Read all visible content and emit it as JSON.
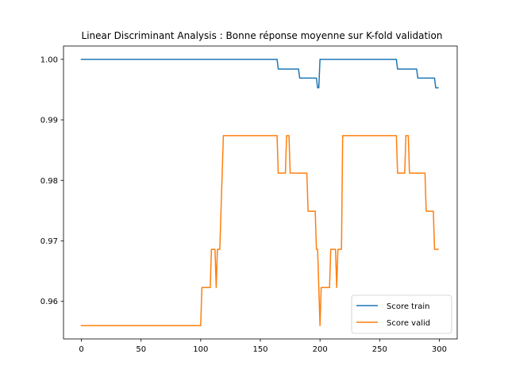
{
  "chart_data": {
    "type": "line",
    "title": "Linear Discriminant Analysis : Bonne réponse moyenne sur K-fold validation",
    "xlabel": "",
    "ylabel": "",
    "xlim": [
      -15,
      315
    ],
    "ylim": [
      0.9538,
      1.0022
    ],
    "xticks": [
      0,
      50,
      100,
      150,
      200,
      250,
      300
    ],
    "xtick_labels": [
      "0",
      "50",
      "100",
      "150",
      "200",
      "250",
      "300"
    ],
    "yticks": [
      0.96,
      0.97,
      0.98,
      0.99,
      1.0
    ],
    "ytick_labels": [
      "0.96",
      "0.97",
      "0.98",
      "0.99",
      "1.00"
    ],
    "grid": false,
    "legend_position": "lower-right",
    "series": [
      {
        "name": "Score train",
        "color": "#1f77b4",
        "points": [
          [
            0,
            1.0
          ],
          [
            164,
            1.0
          ],
          [
            165,
            0.9984
          ],
          [
            182,
            0.9984
          ],
          [
            183,
            0.9969
          ],
          [
            197,
            0.9969
          ],
          [
            198,
            0.9953
          ],
          [
            199,
            0.9953
          ],
          [
            200,
            1.0
          ],
          [
            264,
            1.0
          ],
          [
            265,
            0.9984
          ],
          [
            281,
            0.9984
          ],
          [
            282,
            0.9969
          ],
          [
            296,
            0.9969
          ],
          [
            297,
            0.9953
          ],
          [
            299,
            0.9953
          ]
        ]
      },
      {
        "name": "Score valid",
        "color": "#ff7f0e",
        "points": [
          [
            0,
            0.956
          ],
          [
            100,
            0.956
          ],
          [
            101,
            0.9623
          ],
          [
            108,
            0.9623
          ],
          [
            109,
            0.9686
          ],
          [
            112,
            0.9686
          ],
          [
            113,
            0.9623
          ],
          [
            114,
            0.9686
          ],
          [
            116,
            0.9686
          ],
          [
            119,
            0.9874
          ],
          [
            164,
            0.9874
          ],
          [
            165,
            0.9812
          ],
          [
            171,
            0.9812
          ],
          [
            172,
            0.9874
          ],
          [
            174,
            0.9874
          ],
          [
            175,
            0.9812
          ],
          [
            189,
            0.9812
          ],
          [
            190,
            0.9749
          ],
          [
            196,
            0.9749
          ],
          [
            197,
            0.9686
          ],
          [
            198,
            0.9686
          ],
          [
            200,
            0.956
          ],
          [
            201,
            0.9623
          ],
          [
            208,
            0.9623
          ],
          [
            209,
            0.9686
          ],
          [
            213,
            0.9686
          ],
          [
            214,
            0.9623
          ],
          [
            215,
            0.9686
          ],
          [
            218,
            0.9686
          ],
          [
            219,
            0.9874
          ],
          [
            264,
            0.9874
          ],
          [
            265,
            0.9812
          ],
          [
            271,
            0.9812
          ],
          [
            272,
            0.9874
          ],
          [
            274,
            0.9874
          ],
          [
            275,
            0.9812
          ],
          [
            288,
            0.9812
          ],
          [
            289,
            0.9749
          ],
          [
            295,
            0.9749
          ],
          [
            296,
            0.9686
          ],
          [
            299,
            0.9686
          ]
        ]
      }
    ]
  }
}
